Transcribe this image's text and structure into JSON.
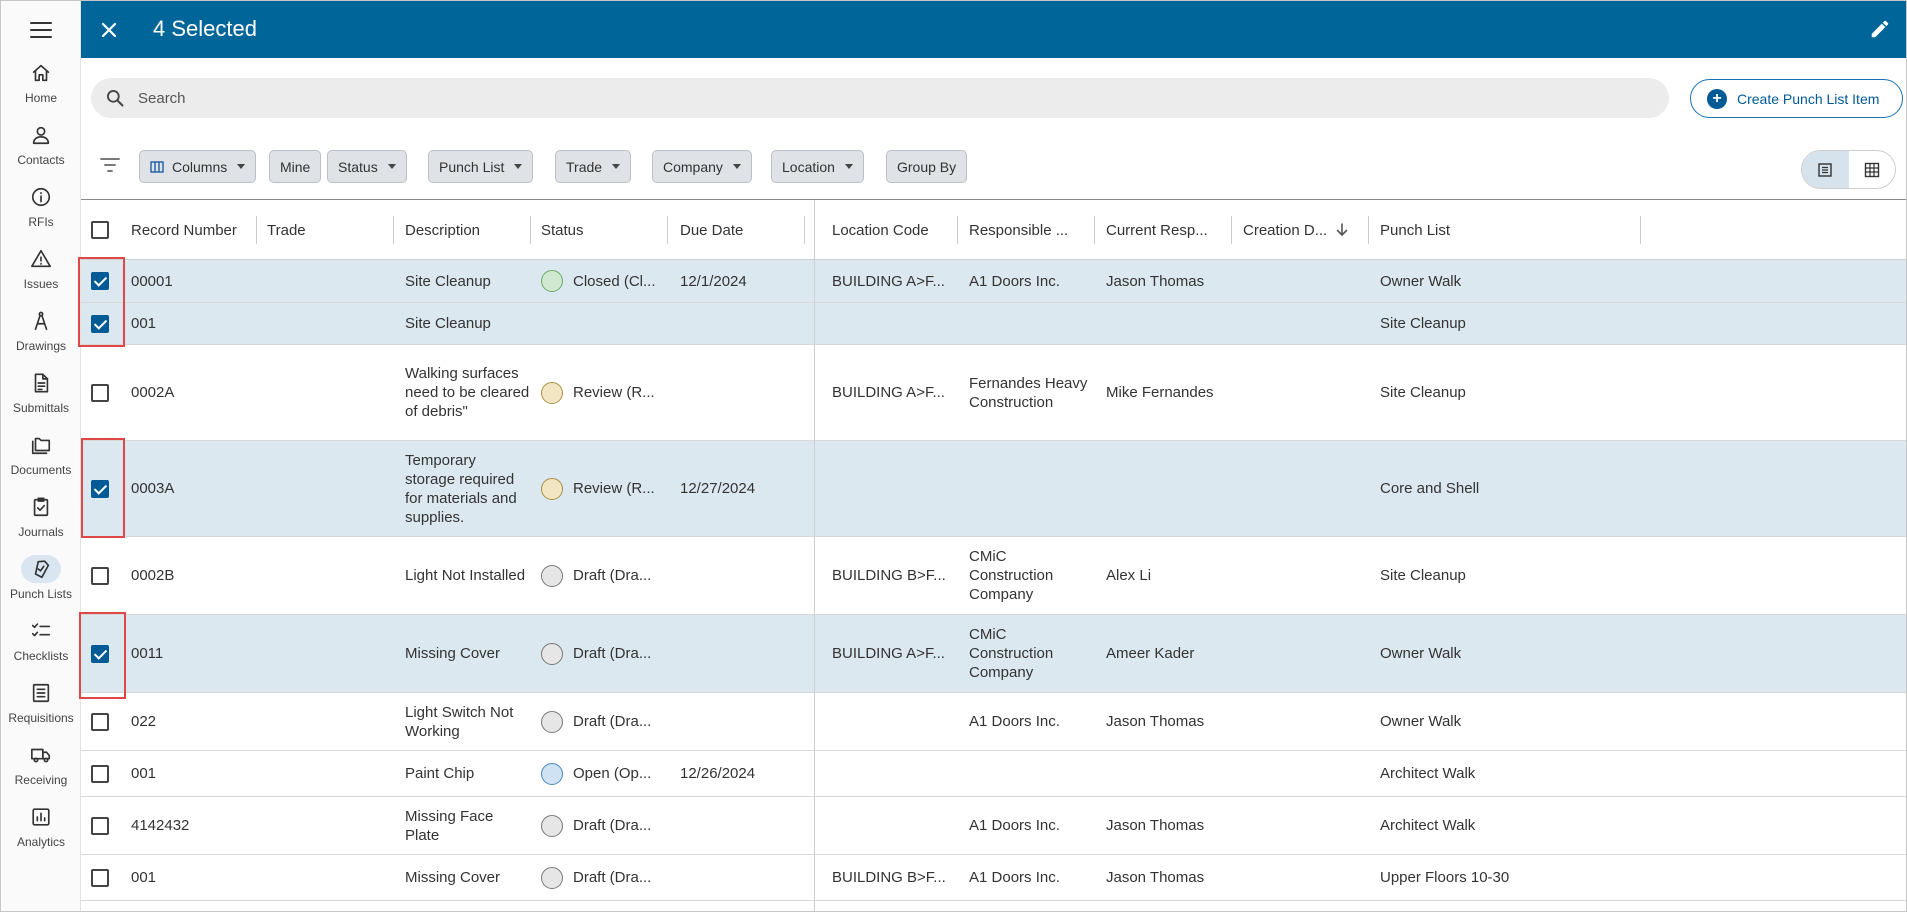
{
  "nav": {
    "items": [
      {
        "label": "Home",
        "icon": "home-icon"
      },
      {
        "label": "Contacts",
        "icon": "person-icon"
      },
      {
        "label": "RFIs",
        "icon": "info-icon"
      },
      {
        "label": "Issues",
        "icon": "warning-icon"
      },
      {
        "label": "Drawings",
        "icon": "compass-icon"
      },
      {
        "label": "Submittals",
        "icon": "document-icon"
      },
      {
        "label": "Documents",
        "icon": "folder-icon"
      },
      {
        "label": "Journals",
        "icon": "clipboard-check-icon"
      },
      {
        "label": "Punch Lists",
        "icon": "tag-check-icon"
      },
      {
        "label": "Checklists",
        "icon": "checklist-icon"
      },
      {
        "label": "Requisitions",
        "icon": "list-icon"
      },
      {
        "label": "Receiving",
        "icon": "truck-icon"
      },
      {
        "label": "Analytics",
        "icon": "chart-icon"
      }
    ],
    "active": "Punch Lists"
  },
  "header": {
    "title": "4 Selected",
    "bg": "#006699"
  },
  "search": {
    "placeholder": "Search"
  },
  "create_button": {
    "label": "Create Punch List Item"
  },
  "filters": {
    "columns": "Columns",
    "mine": "Mine",
    "status": "Status",
    "punch_list": "Punch List",
    "trade": "Trade",
    "company": "Company",
    "location": "Location",
    "group_by": "Group By"
  },
  "table": {
    "headers": {
      "record": "Record Number",
      "trade": "Trade",
      "description": "Description",
      "status": "Status",
      "due": "Due Date",
      "location": "Location Code",
      "responsible": "Responsible ...",
      "current": "Current Resp...",
      "creation": "Creation D...",
      "punch": "Punch List"
    },
    "rows": [
      {
        "selected": true,
        "record": "00001",
        "trade": "",
        "description": "Site Cleanup",
        "status": "Closed (Cl...",
        "status_color": "#cfe8cf",
        "status_border": "#6aab6a",
        "due": "12/1/2024",
        "location": "BUILDING A>F...",
        "responsible": "A1 Doors Inc.",
        "current": "Jason Thomas",
        "creation": "",
        "punch": "Owner Walk"
      },
      {
        "selected": true,
        "record": "001",
        "trade": "",
        "description": "Site Cleanup",
        "status": "",
        "status_color": "",
        "status_border": "",
        "due": "",
        "location": "",
        "responsible": "",
        "current": "",
        "creation": "",
        "punch": "Site Cleanup"
      },
      {
        "selected": false,
        "record": "0002A",
        "trade": "",
        "description": "Walking surfaces need to be cleared of debris\"",
        "status": "Review (R...",
        "status_color": "#f2e6c2",
        "status_border": "#a8914a",
        "due": "",
        "location": "BUILDING A>F...",
        "responsible": "Fernandes Heavy Construction",
        "current": "Mike Fernandes",
        "creation": "",
        "punch": "Site Cleanup"
      },
      {
        "selected": true,
        "record": "0003A",
        "trade": "",
        "description": "Temporary storage required for materials and supplies.",
        "status": "Review (R...",
        "status_color": "#f2e6c2",
        "status_border": "#a8914a",
        "due": "12/27/2024",
        "location": "",
        "responsible": "",
        "current": "",
        "creation": "",
        "punch": "Core and Shell"
      },
      {
        "selected": false,
        "record": "0002B",
        "trade": "",
        "description": "Light Not Installed",
        "status": "Draft (Dra...",
        "status_color": "#e6e6e6",
        "status_border": "#777777",
        "due": "",
        "location": "BUILDING B>F...",
        "responsible": "CMiC Construction Company",
        "current": "Alex Li",
        "creation": "",
        "punch": "Site Cleanup"
      },
      {
        "selected": true,
        "record": "0011",
        "trade": "",
        "description": "Missing Cover",
        "status": "Draft (Dra...",
        "status_color": "#e6e6e6",
        "status_border": "#777777",
        "due": "",
        "location": "BUILDING A>F...",
        "responsible": "CMiC Construction Company",
        "current": "Ameer Kader",
        "creation": "",
        "punch": "Owner Walk"
      },
      {
        "selected": false,
        "record": "022",
        "trade": "",
        "description": "Light Switch Not Working",
        "status": "Draft (Dra...",
        "status_color": "#e6e6e6",
        "status_border": "#777777",
        "due": "",
        "location": "",
        "responsible": "A1 Doors Inc.",
        "current": "Jason Thomas",
        "creation": "",
        "punch": "Owner Walk"
      },
      {
        "selected": false,
        "record": "001",
        "trade": "",
        "description": "Paint Chip",
        "status": "Open (Op...",
        "status_color": "#cfe2f3",
        "status_border": "#4a86b8",
        "due": "12/26/2024",
        "location": "",
        "responsible": "",
        "current": "",
        "creation": "",
        "punch": "Architect Walk"
      },
      {
        "selected": false,
        "record": "4142432",
        "trade": "",
        "description": "Missing Face Plate",
        "status": "Draft (Dra...",
        "status_color": "#e6e6e6",
        "status_border": "#777777",
        "due": "",
        "location": "",
        "responsible": "A1 Doors Inc.",
        "current": "Jason Thomas",
        "creation": "",
        "punch": "Architect Walk"
      },
      {
        "selected": false,
        "record": "001",
        "trade": "",
        "description": "Missing Cover",
        "status": "Draft (Dra...",
        "status_color": "#e6e6e6",
        "status_border": "#777777",
        "due": "",
        "location": "BUILDING B>F...",
        "responsible": "A1 Doors Inc.",
        "current": "Jason Thomas",
        "creation": "",
        "punch": "Upper Floors 10-30"
      }
    ]
  }
}
